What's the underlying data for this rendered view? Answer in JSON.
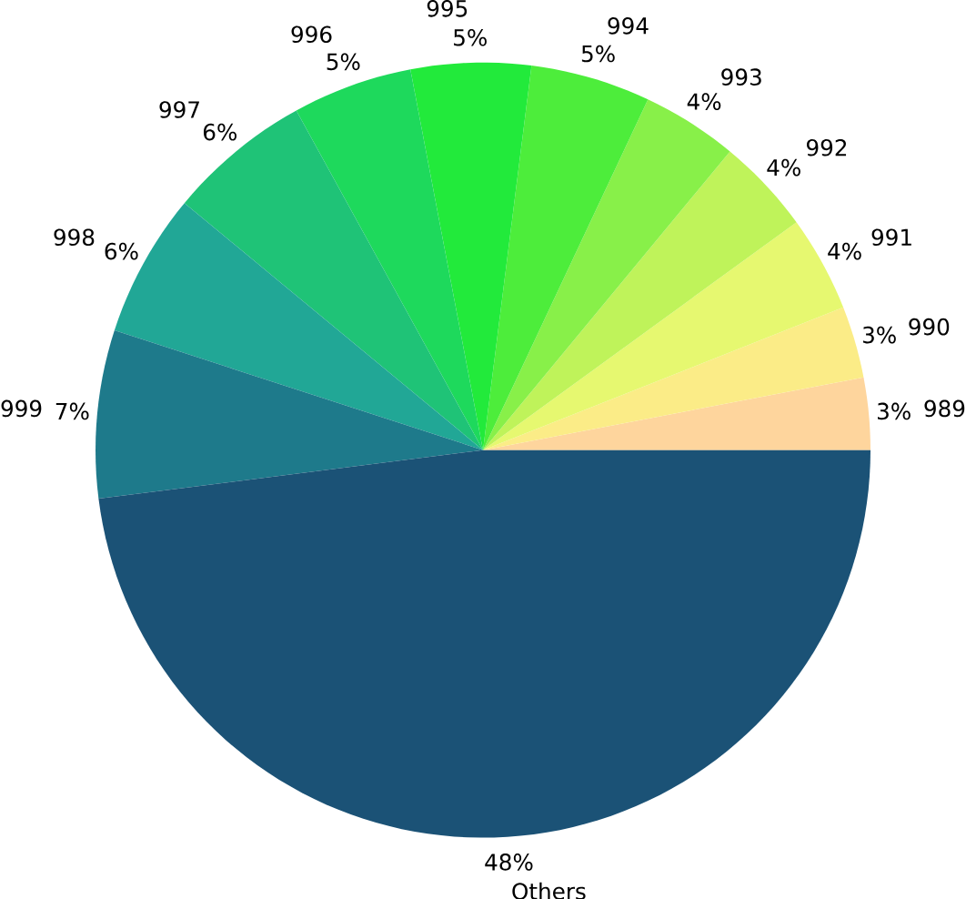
{
  "chart_data": {
    "type": "pie",
    "categories": [
      "989",
      "990",
      "991",
      "992",
      "993",
      "994",
      "995",
      "996",
      "997",
      "998",
      "999",
      "Others"
    ],
    "values": [
      3,
      3,
      4,
      4,
      4,
      5,
      5,
      5,
      6,
      6,
      7,
      48
    ],
    "value_labels": [
      "3%",
      "3%",
      "4%",
      "4%",
      "4%",
      "5%",
      "5%",
      "5%",
      "6%",
      "6%",
      "7%",
      "48%"
    ],
    "colors": [
      "#fed59d",
      "#fbec87",
      "#e6f870",
      "#bff35a",
      "#88f049",
      "#4ded3b",
      "#22ea3b",
      "#1ed95c",
      "#1fc377",
      "#21a796",
      "#1e7a8b",
      "#1b5276"
    ]
  }
}
